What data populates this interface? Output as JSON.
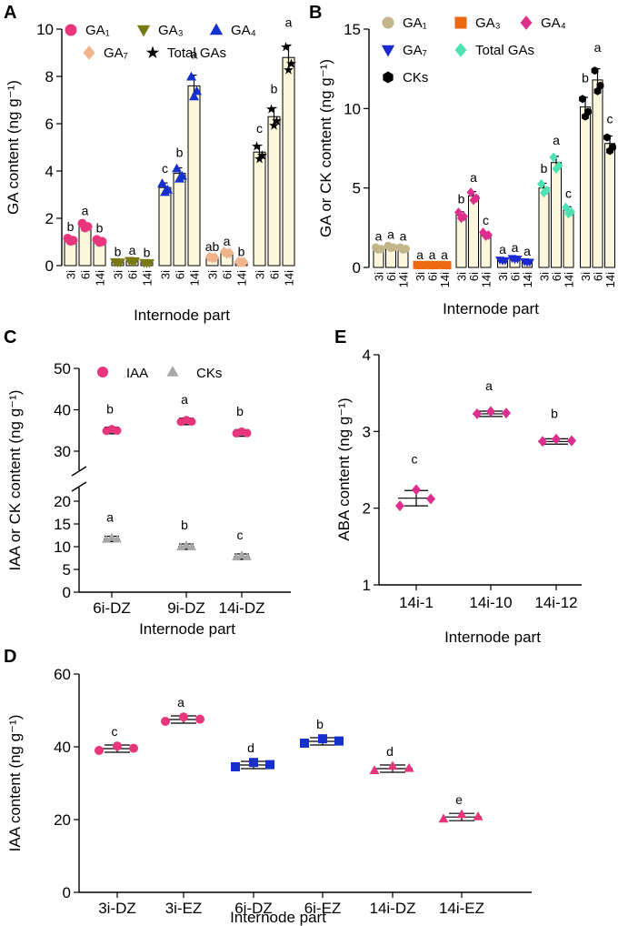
{
  "panels": {
    "A": {
      "letter": "A",
      "ylabel": "GA content (ng g⁻¹)",
      "xlabel": "Internode part",
      "yticks": [
        "0",
        "2",
        "4",
        "6",
        "8",
        "10"
      ],
      "ymax": 10,
      "legend": [
        {
          "label": "GA₁",
          "color": "#e8357b",
          "marker": "circle"
        },
        {
          "label": "GA₃",
          "color": "#7a7a14",
          "marker": "tri-down"
        },
        {
          "label": "GA₄",
          "color": "#1530cc",
          "marker": "tri-up"
        },
        {
          "label": "GA₇",
          "color": "#f0b48c",
          "marker": "diamond"
        },
        {
          "label": "Total GAs",
          "color": "#000000",
          "marker": "star"
        }
      ],
      "groups": [
        {
          "series": "GA₁",
          "color": "#e8357b",
          "marker": "circle",
          "bars": [
            {
              "x": "3i",
              "value": 1.1,
              "letter": "b"
            },
            {
              "x": "6i",
              "value": 1.7,
              "letter": "a"
            },
            {
              "x": "14i",
              "value": 1.05,
              "letter": "b"
            }
          ]
        },
        {
          "series": "GA₃",
          "color": "#7a7a14",
          "marker": "tri-down",
          "bars": [
            {
              "x": "3i",
              "value": 0.15,
              "letter": "b"
            },
            {
              "x": "6i",
              "value": 0.2,
              "letter": "a"
            },
            {
              "x": "14i",
              "value": 0.12,
              "letter": "b"
            }
          ]
        },
        {
          "series": "GA₄",
          "color": "#1530cc",
          "marker": "tri-up",
          "bars": [
            {
              "x": "3i",
              "value": 3.3,
              "letter": "c"
            },
            {
              "x": "6i",
              "value": 3.9,
              "letter": "b"
            },
            {
              "x": "14i",
              "value": 7.6,
              "letter": "a"
            }
          ]
        },
        {
          "series": "GA₇",
          "color": "#f0b48c",
          "marker": "diamond",
          "bars": [
            {
              "x": "3i",
              "value": 0.35,
              "letter": "ab"
            },
            {
              "x": "6i",
              "value": 0.55,
              "letter": "a"
            },
            {
              "x": "14i",
              "value": 0.15,
              "letter": "b"
            }
          ]
        },
        {
          "series": "Total GAs",
          "color": "#000000",
          "marker": "star",
          "bars": [
            {
              "x": "3i",
              "value": 4.8,
              "letter": "c"
            },
            {
              "x": "6i",
              "value": 6.3,
              "letter": "b"
            },
            {
              "x": "14i",
              "value": 8.8,
              "letter": "a"
            }
          ]
        }
      ]
    },
    "B": {
      "letter": "B",
      "ylabel": "GA or CK content (ng g⁻¹)",
      "xlabel": "Internode part",
      "yticks": [
        "0",
        "5",
        "10",
        "15"
      ],
      "ymax": 15,
      "legend": [
        {
          "label": "GA₁",
          "color": "#c2b58a",
          "marker": "circle"
        },
        {
          "label": "GA₃",
          "color": "#ee6a10",
          "marker": "square"
        },
        {
          "label": "GA₄",
          "color": "#de2f8f",
          "marker": "diamond"
        },
        {
          "label": "GA₇",
          "color": "#1a2ad0",
          "marker": "tri-down"
        },
        {
          "label": "Total GAs",
          "color": "#4ee2b4",
          "marker": "diamond"
        },
        {
          "label": "CKs",
          "color": "#000000",
          "marker": "hexagon"
        }
      ],
      "groups": [
        {
          "series": "GA₁",
          "color": "#c2b58a",
          "marker": "circle",
          "bars": [
            {
              "x": "3i",
              "value": 1.2,
              "letter": "a"
            },
            {
              "x": "6i",
              "value": 1.3,
              "letter": "a"
            },
            {
              "x": "14i",
              "value": 1.2,
              "letter": "a"
            }
          ]
        },
        {
          "series": "GA₃",
          "color": "#ee6a10",
          "marker": "square",
          "bars": [
            {
              "x": "3i",
              "value": 0.15,
              "letter": "a"
            },
            {
              "x": "6i",
              "value": 0.15,
              "letter": "a"
            },
            {
              "x": "14i",
              "value": 0.15,
              "letter": "a"
            }
          ]
        },
        {
          "series": "GA₄",
          "color": "#de2f8f",
          "marker": "diamond",
          "bars": [
            {
              "x": "3i",
              "value": 3.3,
              "letter": "b"
            },
            {
              "x": "6i",
              "value": 4.5,
              "letter": "a"
            },
            {
              "x": "14i",
              "value": 2.1,
              "letter": "c"
            }
          ]
        },
        {
          "series": "GA₇",
          "color": "#1a2ad0",
          "marker": "tri-down",
          "bars": [
            {
              "x": "3i",
              "value": 0.45,
              "letter": "a"
            },
            {
              "x": "6i",
              "value": 0.55,
              "letter": "a"
            },
            {
              "x": "14i",
              "value": 0.35,
              "letter": "a"
            }
          ]
        },
        {
          "series": "Total GAs",
          "color": "#4ee2b4",
          "marker": "diamond",
          "bars": [
            {
              "x": "3i",
              "value": 5.0,
              "letter": "b"
            },
            {
              "x": "6i",
              "value": 6.6,
              "letter": "a"
            },
            {
              "x": "14i",
              "value": 3.6,
              "letter": "c"
            }
          ]
        },
        {
          "series": "CKs",
          "color": "#000000",
          "marker": "hexagon",
          "bars": [
            {
              "x": "3i",
              "value": 10.1,
              "letter": "b"
            },
            {
              "x": "6i",
              "value": 11.8,
              "letter": "a"
            },
            {
              "x": "14i",
              "value": 7.8,
              "letter": "c"
            }
          ]
        }
      ]
    },
    "C": {
      "letter": "C",
      "ylabel": "IAA or CK content (ng g⁻¹)",
      "xlabel": "Internode part",
      "categories": [
        "6i-DZ",
        "9i-DZ",
        "14i-DZ"
      ],
      "upper_yticks": [
        "30",
        "40",
        "50"
      ],
      "lower_yticks": [
        "0",
        "5",
        "10",
        "15",
        "20"
      ],
      "legend": [
        {
          "label": "IAA",
          "color": "#e8357b",
          "marker": "circle"
        },
        {
          "label": "CKs",
          "color": "#a8a8a8",
          "marker": "tri-up"
        }
      ],
      "series": [
        {
          "name": "IAA",
          "color": "#e8357b",
          "marker": "circle",
          "values": [
            35.0,
            37.2,
            34.4
          ],
          "letters": [
            "b",
            "a",
            "b"
          ]
        },
        {
          "name": "CKs",
          "color": "#a8a8a8",
          "marker": "tri-up",
          "values": [
            11.7,
            10.0,
            7.8
          ],
          "letters": [
            "a",
            "b",
            "c"
          ]
        }
      ]
    },
    "D": {
      "letter": "D",
      "ylabel": "IAA content (ng g⁻¹)",
      "xlabel": "Internode part",
      "yticks": [
        "0",
        "20",
        "40",
        "60"
      ],
      "ymax": 60,
      "points": [
        {
          "x": "3i-DZ",
          "value": 39.5,
          "letter": "c",
          "color": "#e8357b",
          "marker": "circle"
        },
        {
          "x": "3i-EZ",
          "value": 47.5,
          "letter": "a",
          "color": "#e8357b",
          "marker": "circle"
        },
        {
          "x": "6i-DZ",
          "value": 35.0,
          "letter": "d",
          "color": "#1530cc",
          "marker": "square"
        },
        {
          "x": "6i-EZ",
          "value": 41.5,
          "letter": "b",
          "color": "#1530cc",
          "marker": "square"
        },
        {
          "x": "14i-DZ",
          "value": 34.0,
          "letter": "d",
          "color": "#e8357b",
          "marker": "tri-up"
        },
        {
          "x": "14i-EZ",
          "value": 20.7,
          "letter": "e",
          "color": "#e8357b",
          "marker": "tri-up"
        }
      ]
    },
    "E": {
      "letter": "E",
      "ylabel": "ABA content (ng g⁻¹)",
      "xlabel": "Internode part",
      "yticks": [
        "1",
        "2",
        "3",
        "4"
      ],
      "ymin": 1,
      "ymax": 4,
      "points": [
        {
          "x": "14i-1",
          "value": 2.13,
          "letter": "c"
        },
        {
          "x": "14i-10",
          "value": 3.23,
          "letter": "a"
        },
        {
          "x": "14i-12",
          "value": 2.87,
          "letter": "b"
        }
      ],
      "color": "#de2f8f"
    }
  },
  "chart_data": [
    {
      "panel": "A",
      "type": "bar",
      "title": "",
      "ylabel": "GA content (ng g⁻¹)",
      "xlabel": "Internode part",
      "ylim": [
        0,
        10
      ],
      "categories": [
        "3i",
        "6i",
        "14i"
      ],
      "series": [
        {
          "name": "GA₁",
          "values": [
            1.1,
            1.7,
            1.05
          ]
        },
        {
          "name": "GA₃",
          "values": [
            0.15,
            0.2,
            0.12
          ]
        },
        {
          "name": "GA₄",
          "values": [
            3.3,
            3.9,
            7.6
          ]
        },
        {
          "name": "GA₇",
          "values": [
            0.35,
            0.55,
            0.15
          ]
        },
        {
          "name": "Total GAs",
          "values": [
            4.8,
            6.3,
            8.8
          ]
        }
      ]
    },
    {
      "panel": "B",
      "type": "bar",
      "title": "",
      "ylabel": "GA or CK content (ng g⁻¹)",
      "xlabel": "Internode part",
      "ylim": [
        0,
        15
      ],
      "categories": [
        "3i",
        "6i",
        "14i"
      ],
      "series": [
        {
          "name": "GA₁",
          "values": [
            1.2,
            1.3,
            1.2
          ]
        },
        {
          "name": "GA₃",
          "values": [
            0.15,
            0.15,
            0.15
          ]
        },
        {
          "name": "GA₄",
          "values": [
            3.3,
            4.5,
            2.1
          ]
        },
        {
          "name": "GA₇",
          "values": [
            0.45,
            0.55,
            0.35
          ]
        },
        {
          "name": "Total GAs",
          "values": [
            5.0,
            6.6,
            3.6
          ]
        },
        {
          "name": "CKs",
          "values": [
            10.1,
            11.8,
            7.8
          ]
        }
      ]
    },
    {
      "panel": "C",
      "type": "scatter",
      "title": "",
      "ylabel": "IAA or CK content (ng g⁻¹)",
      "xlabel": "Internode part",
      "ylim": [
        0,
        50
      ],
      "categories": [
        "6i-DZ",
        "9i-DZ",
        "14i-DZ"
      ],
      "series": [
        {
          "name": "IAA",
          "values": [
            35.0,
            37.2,
            34.4
          ]
        },
        {
          "name": "CKs",
          "values": [
            11.7,
            10.0,
            7.8
          ]
        }
      ]
    },
    {
      "panel": "D",
      "type": "scatter",
      "title": "",
      "ylabel": "IAA content (ng g⁻¹)",
      "xlabel": "Internode part",
      "ylim": [
        0,
        60
      ],
      "categories": [
        "3i-DZ",
        "3i-EZ",
        "6i-DZ",
        "6i-EZ",
        "14i-DZ",
        "14i-EZ"
      ],
      "values": [
        39.5,
        47.5,
        35.0,
        41.5,
        34.0,
        20.7
      ]
    },
    {
      "panel": "E",
      "type": "scatter",
      "title": "",
      "ylabel": "ABA content (ng g⁻¹)",
      "xlabel": "Internode part",
      "ylim": [
        1,
        4
      ],
      "categories": [
        "14i-1",
        "14i-10",
        "14i-12"
      ],
      "values": [
        2.13,
        3.23,
        2.87
      ]
    }
  ]
}
